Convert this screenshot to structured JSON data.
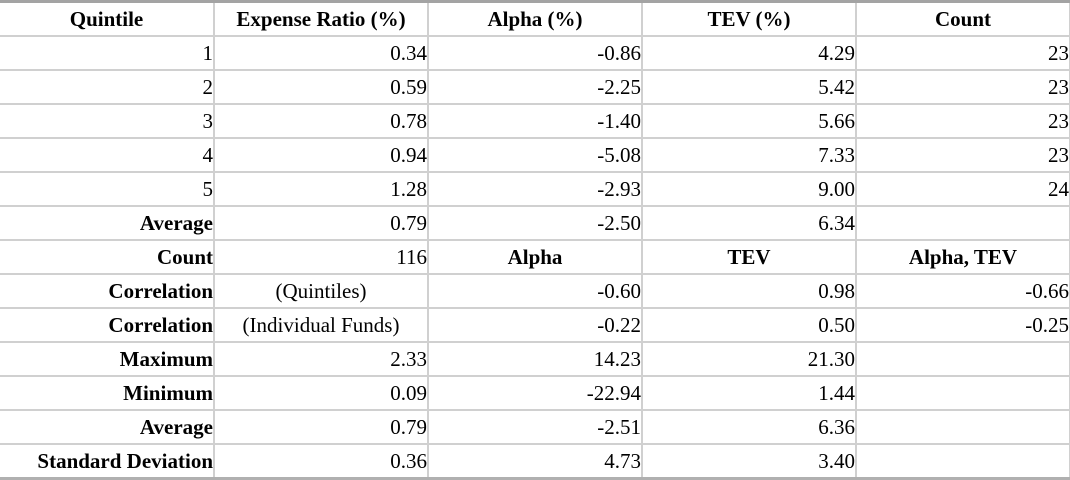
{
  "colors": {
    "grid_line": "#d0d0d0",
    "top_border": "#a3a3a3",
    "bottom_border": "#b0b0b0",
    "text": "#000000",
    "background": "#ffffff"
  },
  "table": {
    "columns": [
      "Quintile",
      "Expense Ratio (%)",
      "Alpha (%)",
      "TEV (%)",
      "Count"
    ],
    "rows": [
      {
        "cells": [
          {
            "text": "1",
            "style": "num"
          },
          {
            "text": "0.34",
            "style": "num"
          },
          {
            "text": "-0.86",
            "style": "num"
          },
          {
            "text": "4.29",
            "style": "num"
          },
          {
            "text": "23",
            "style": "num"
          }
        ]
      },
      {
        "cells": [
          {
            "text": "2",
            "style": "num"
          },
          {
            "text": "0.59",
            "style": "num"
          },
          {
            "text": "-2.25",
            "style": "num"
          },
          {
            "text": "5.42",
            "style": "num"
          },
          {
            "text": "23",
            "style": "num"
          }
        ]
      },
      {
        "cells": [
          {
            "text": "3",
            "style": "num"
          },
          {
            "text": "0.78",
            "style": "num"
          },
          {
            "text": "-1.40",
            "style": "num"
          },
          {
            "text": "5.66",
            "style": "num"
          },
          {
            "text": "23",
            "style": "num"
          }
        ]
      },
      {
        "cells": [
          {
            "text": "4",
            "style": "num"
          },
          {
            "text": "0.94",
            "style": "num"
          },
          {
            "text": "-5.08",
            "style": "num"
          },
          {
            "text": "7.33",
            "style": "num"
          },
          {
            "text": "23",
            "style": "num"
          }
        ]
      },
      {
        "cells": [
          {
            "text": "5",
            "style": "num"
          },
          {
            "text": "1.28",
            "style": "num"
          },
          {
            "text": "-2.93",
            "style": "num"
          },
          {
            "text": "9.00",
            "style": "num"
          },
          {
            "text": "24",
            "style": "num"
          }
        ]
      },
      {
        "cells": [
          {
            "text": "Average",
            "style": "label"
          },
          {
            "text": "0.79",
            "style": "num"
          },
          {
            "text": "-2.50",
            "style": "num"
          },
          {
            "text": "6.34",
            "style": "num"
          },
          {
            "text": "",
            "style": "empty"
          }
        ]
      },
      {
        "cells": [
          {
            "text": "Count",
            "style": "label"
          },
          {
            "text": "116",
            "style": "num"
          },
          {
            "text": "Alpha",
            "style": "hdr"
          },
          {
            "text": "TEV",
            "style": "hdr"
          },
          {
            "text": "Alpha, TEV",
            "style": "hdr"
          }
        ]
      },
      {
        "cells": [
          {
            "text": "Correlation",
            "style": "label"
          },
          {
            "text": "(Quintiles)",
            "style": "paren"
          },
          {
            "text": "-0.60",
            "style": "num"
          },
          {
            "text": "0.98",
            "style": "num"
          },
          {
            "text": "-0.66",
            "style": "num"
          }
        ]
      },
      {
        "cells": [
          {
            "text": "Correlation",
            "style": "label"
          },
          {
            "text": "(Individual Funds)",
            "style": "paren"
          },
          {
            "text": "-0.22",
            "style": "num"
          },
          {
            "text": "0.50",
            "style": "num"
          },
          {
            "text": "-0.25",
            "style": "num"
          }
        ]
      },
      {
        "cells": [
          {
            "text": "Maximum",
            "style": "label"
          },
          {
            "text": "2.33",
            "style": "num"
          },
          {
            "text": "14.23",
            "style": "num"
          },
          {
            "text": "21.30",
            "style": "num"
          },
          {
            "text": "",
            "style": "empty"
          }
        ]
      },
      {
        "cells": [
          {
            "text": "Minimum",
            "style": "label"
          },
          {
            "text": "0.09",
            "style": "num"
          },
          {
            "text": "-22.94",
            "style": "num"
          },
          {
            "text": "1.44",
            "style": "num"
          },
          {
            "text": "",
            "style": "empty"
          }
        ]
      },
      {
        "cells": [
          {
            "text": "Average",
            "style": "label"
          },
          {
            "text": "0.79",
            "style": "num"
          },
          {
            "text": "-2.51",
            "style": "num"
          },
          {
            "text": "6.36",
            "style": "num"
          },
          {
            "text": "",
            "style": "empty"
          }
        ]
      },
      {
        "cells": [
          {
            "text": "Standard Deviation",
            "style": "label"
          },
          {
            "text": "0.36",
            "style": "num"
          },
          {
            "text": "4.73",
            "style": "num"
          },
          {
            "text": "3.40",
            "style": "num"
          },
          {
            "text": "",
            "style": "empty"
          }
        ]
      }
    ]
  }
}
